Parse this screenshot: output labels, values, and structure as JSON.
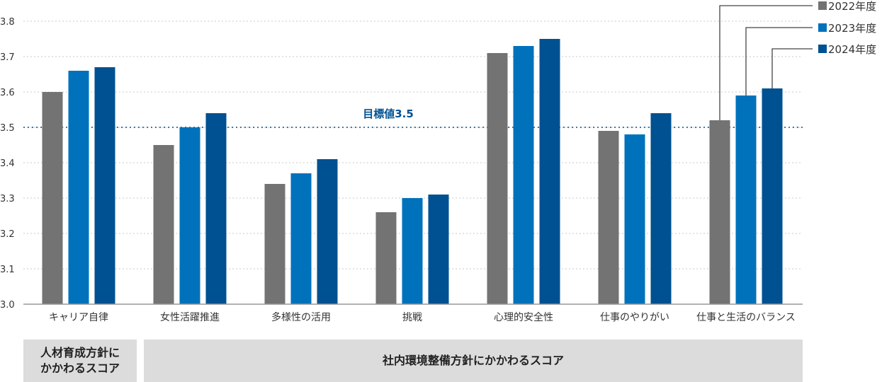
{
  "chart_data": {
    "type": "bar",
    "categories": [
      "キャリア自律",
      "女性活躍推進",
      "多様性の活用",
      "挑戦",
      "心理的安全性",
      "仕事のやりがい",
      "仕事と生活のバランス"
    ],
    "series": [
      {
        "name": "2022年度",
        "color": "#737373",
        "values": [
          3.6,
          3.45,
          3.34,
          3.26,
          3.71,
          3.49,
          3.52
        ]
      },
      {
        "name": "2023年度",
        "color": "#0072bc",
        "values": [
          3.66,
          3.5,
          3.37,
          3.3,
          3.73,
          3.48,
          3.59
        ]
      },
      {
        "name": "2024年度",
        "color": "#005191",
        "values": [
          3.67,
          3.54,
          3.41,
          3.31,
          3.75,
          3.54,
          3.61
        ]
      }
    ],
    "ylim": [
      3.0,
      3.8
    ],
    "yticks": [
      "3.0",
      "3.1",
      "3.2",
      "3.3",
      "3.4",
      "3.5",
      "3.6",
      "3.7",
      "3.8"
    ],
    "grid": true,
    "legend_placement": "top-right",
    "target": {
      "value": 3.5,
      "label": "目標値3.5",
      "color": "#005191"
    }
  },
  "groups": [
    {
      "label": "人材育成方針に\nかかわるスコア"
    },
    {
      "label": "社内環境整備方針にかかわるスコア"
    }
  ]
}
